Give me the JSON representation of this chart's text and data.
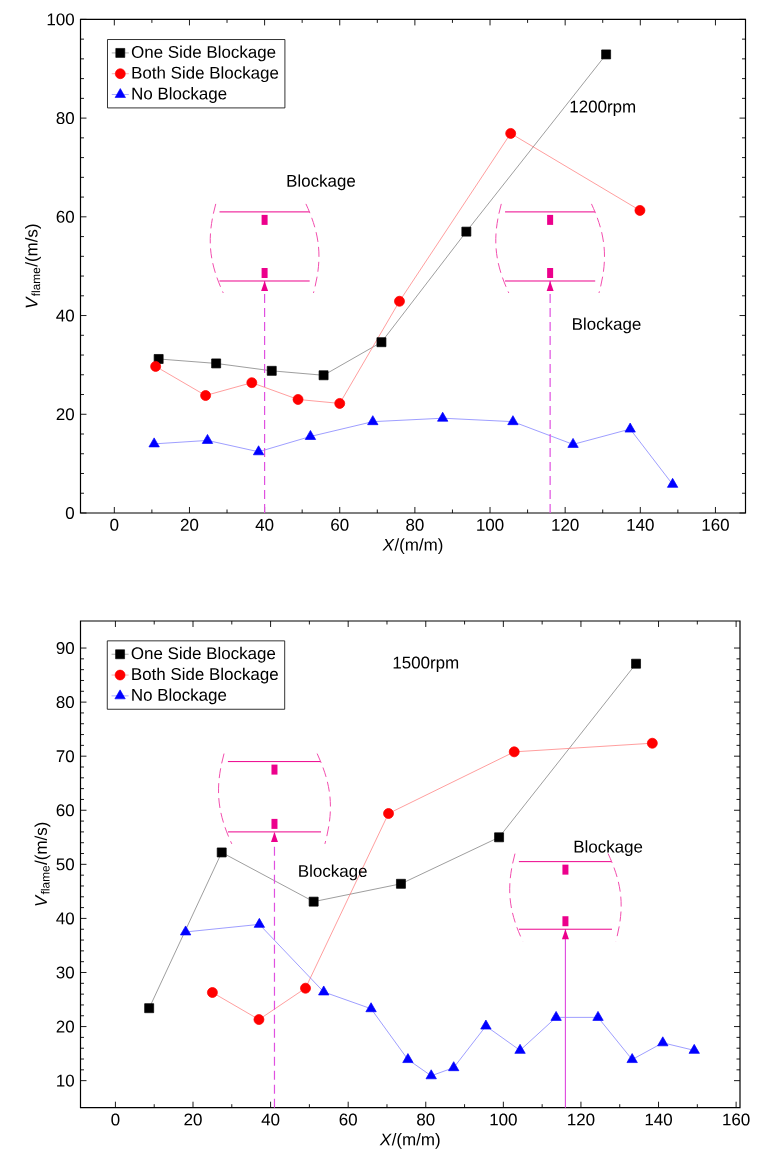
{
  "chart_data": [
    {
      "type": "line",
      "xlabel": "*X*/(m/m)",
      "ylabel": "*V*$_{flame}$/(m/s)",
      "xlim": [
        -9,
        168
      ],
      "ylim": [
        0,
        100
      ],
      "xticks": [
        0,
        20,
        40,
        60,
        80,
        100,
        120,
        140,
        160
      ],
      "yticks": [
        0,
        20,
        40,
        60,
        80,
        100
      ],
      "legend": "top left",
      "line_style": "solid",
      "series": [
        {
          "name": "One Side Blockage",
          "color": "#000000",
          "marker": "square",
          "x": [
            11.8,
            27.1,
            41.9,
            55.7,
            71.1,
            93.7,
            130.9
          ],
          "values": [
            31.2,
            30.3,
            28.8,
            27.9,
            34.6,
            57.0,
            92.9
          ]
        },
        {
          "name": "Both Side Blockage",
          "color": "#ff0000",
          "marker": "circle",
          "x": [
            11.0,
            24.3,
            36.6,
            48.9,
            60.0,
            75.9,
            105.5,
            139.9
          ],
          "values": [
            29.7,
            23.8,
            26.4,
            23.0,
            22.2,
            42.9,
            76.9,
            61.3
          ]
        },
        {
          "name": "No Blockage",
          "color": "#0000ff",
          "marker": "triangle",
          "x": [
            10.6,
            24.8,
            38.4,
            52.2,
            68.8,
            87.4,
            106.1,
            122.1,
            137.3,
            148.6
          ],
          "values": [
            14.0,
            14.7,
            12.4,
            15.5,
            18.5,
            19.2,
            18.5,
            13.9,
            17.0,
            5.8
          ]
        }
      ],
      "ref_lines": [
        {
          "axis": "x",
          "value": 40,
          "color": "#e050e0",
          "line_style": "dashed"
        },
        {
          "axis": "x",
          "value": 116,
          "color": "#e050e0",
          "line_style": "dashed"
        }
      ],
      "annotations": [
        "1200rpm",
        "Blockage",
        "Blockage"
      ]
    },
    {
      "type": "line",
      "xlabel": "*X*/(m/m)",
      "ylabel": "*V*$_{flame}$/(m/s)",
      "xlim": [
        -9,
        161
      ],
      "ylim": [
        5,
        95
      ],
      "xticks": [
        0,
        20,
        40,
        60,
        80,
        100,
        120,
        140,
        160
      ],
      "yticks": [
        10,
        20,
        30,
        40,
        50,
        60,
        70,
        80,
        90
      ],
      "legend": "top left",
      "line_style": "solid",
      "series": [
        {
          "name": "One Side Blockage",
          "color": "#000000",
          "marker": "square",
          "x": [
            8.7,
            27.4,
            51.1,
            73.6,
            98.9,
            134.2
          ],
          "values": [
            23.4,
            52.2,
            43.1,
            46.4,
            55.0,
            87.1
          ]
        },
        {
          "name": "Both Side Blockage",
          "color": "#ff0000",
          "marker": "circle",
          "x": [
            25.0,
            37.0,
            49.0,
            70.4,
            102.8,
            138.4
          ],
          "values": [
            26.3,
            21.3,
            27.1,
            59.4,
            70.8,
            72.4
          ]
        },
        {
          "name": "No Blockage",
          "color": "#0000ff",
          "marker": "triangle",
          "x": [
            18.1,
            37.1,
            53.7,
            65.9,
            75.4,
            81.4,
            87.2,
            95.5,
            104.3,
            113.6,
            124.4,
            133.2,
            141.1,
            149.2
          ],
          "values": [
            37.5,
            38.9,
            26.4,
            23.3,
            13.9,
            10.9,
            12.4,
            20.1,
            15.6,
            21.7,
            21.7,
            13.9,
            17.0,
            15.6
          ]
        }
      ],
      "ref_lines": [
        {
          "axis": "x",
          "value": 41,
          "color": "#e050e0",
          "line_style": "dashed"
        },
        {
          "axis": "x",
          "value": 116,
          "color": "#e050e0",
          "line_style": "solid"
        }
      ],
      "annotations": [
        "1500rpm",
        "Blockage",
        "Blockage"
      ]
    }
  ]
}
